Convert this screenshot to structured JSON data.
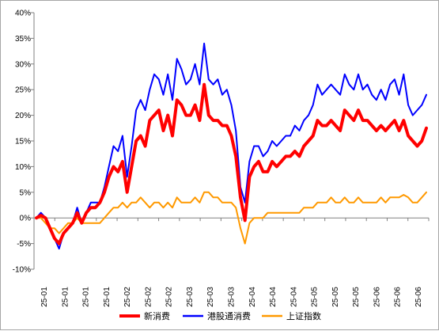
{
  "chart_data": {
    "type": "line",
    "title": "",
    "xlabel": "",
    "ylabel": "",
    "ylim": [
      -0.1,
      0.4
    ],
    "y_ticks": [
      -0.1,
      -0.05,
      0.0,
      0.05,
      0.1,
      0.15,
      0.2,
      0.25,
      0.3,
      0.35,
      0.4
    ],
    "y_tick_labels": [
      "-10%",
      "-5%",
      "0%",
      "5%",
      "10%",
      "15%",
      "20%",
      "25%",
      "30%",
      "35%",
      "40%"
    ],
    "x_tick_labels": [
      "25-01",
      "25-01",
      "25-01",
      "25-01",
      "25-02",
      "25-02",
      "25-02",
      "25-03",
      "25-03",
      "25-03",
      "25-04",
      "25-04",
      "25-04",
      "25-05",
      "25-05",
      "25-05",
      "25-06",
      "25-06",
      "25-06"
    ],
    "grid": false,
    "legend_position": "bottom",
    "series": [
      {
        "name": "新消费",
        "color": "#ff0000",
        "values": [
          0.0,
          0.005,
          0.0,
          -0.02,
          -0.04,
          -0.05,
          -0.03,
          -0.02,
          -0.01,
          0.01,
          -0.01,
          0.01,
          0.02,
          0.02,
          0.03,
          0.05,
          0.08,
          0.1,
          0.09,
          0.11,
          0.05,
          0.1,
          0.15,
          0.16,
          0.14,
          0.19,
          0.2,
          0.21,
          0.17,
          0.2,
          0.16,
          0.23,
          0.22,
          0.2,
          0.2,
          0.22,
          0.19,
          0.26,
          0.2,
          0.19,
          0.19,
          0.18,
          0.18,
          0.16,
          0.12,
          0.04,
          -0.005,
          0.08,
          0.1,
          0.11,
          0.09,
          0.09,
          0.11,
          0.1,
          0.11,
          0.12,
          0.12,
          0.13,
          0.12,
          0.14,
          0.15,
          0.16,
          0.19,
          0.18,
          0.18,
          0.19,
          0.18,
          0.17,
          0.21,
          0.2,
          0.19,
          0.21,
          0.19,
          0.19,
          0.18,
          0.17,
          0.18,
          0.17,
          0.18,
          0.19,
          0.17,
          0.19,
          0.16,
          0.15,
          0.14,
          0.15,
          0.175
        ]
      },
      {
        "name": "港股通消费",
        "color": "#0000ff",
        "values": [
          0.0,
          0.01,
          0.0,
          -0.02,
          -0.04,
          -0.06,
          -0.03,
          -0.02,
          -0.01,
          0.02,
          -0.01,
          0.01,
          0.03,
          0.03,
          0.03,
          0.06,
          0.1,
          0.14,
          0.13,
          0.16,
          0.08,
          0.14,
          0.21,
          0.23,
          0.21,
          0.25,
          0.28,
          0.27,
          0.24,
          0.28,
          0.23,
          0.31,
          0.29,
          0.26,
          0.27,
          0.3,
          0.26,
          0.34,
          0.27,
          0.26,
          0.27,
          0.24,
          0.25,
          0.22,
          0.17,
          0.06,
          0.03,
          0.11,
          0.14,
          0.14,
          0.12,
          0.13,
          0.15,
          0.14,
          0.15,
          0.16,
          0.16,
          0.18,
          0.17,
          0.19,
          0.2,
          0.22,
          0.26,
          0.24,
          0.25,
          0.26,
          0.25,
          0.24,
          0.28,
          0.26,
          0.25,
          0.28,
          0.25,
          0.26,
          0.24,
          0.23,
          0.25,
          0.23,
          0.26,
          0.27,
          0.24,
          0.28,
          0.22,
          0.2,
          0.21,
          0.22,
          0.24
        ]
      },
      {
        "name": "上证指数",
        "color": "#ff9900",
        "values": [
          0.0,
          0.0,
          -0.01,
          -0.02,
          -0.02,
          -0.03,
          -0.02,
          -0.01,
          -0.01,
          0.0,
          -0.01,
          -0.01,
          -0.01,
          -0.01,
          -0.01,
          0.0,
          0.01,
          0.02,
          0.02,
          0.03,
          0.02,
          0.03,
          0.03,
          0.04,
          0.03,
          0.02,
          0.03,
          0.03,
          0.02,
          0.03,
          0.02,
          0.04,
          0.03,
          0.03,
          0.03,
          0.04,
          0.03,
          0.05,
          0.05,
          0.04,
          0.04,
          0.03,
          0.03,
          0.03,
          0.02,
          -0.02,
          -0.05,
          -0.01,
          0.0,
          0.0,
          0.0,
          0.01,
          0.01,
          0.01,
          0.01,
          0.01,
          0.01,
          0.01,
          0.01,
          0.02,
          0.02,
          0.02,
          0.03,
          0.03,
          0.03,
          0.04,
          0.03,
          0.03,
          0.04,
          0.03,
          0.03,
          0.04,
          0.03,
          0.03,
          0.03,
          0.03,
          0.04,
          0.03,
          0.04,
          0.04,
          0.04,
          0.045,
          0.04,
          0.03,
          0.03,
          0.04,
          0.05
        ]
      }
    ]
  }
}
